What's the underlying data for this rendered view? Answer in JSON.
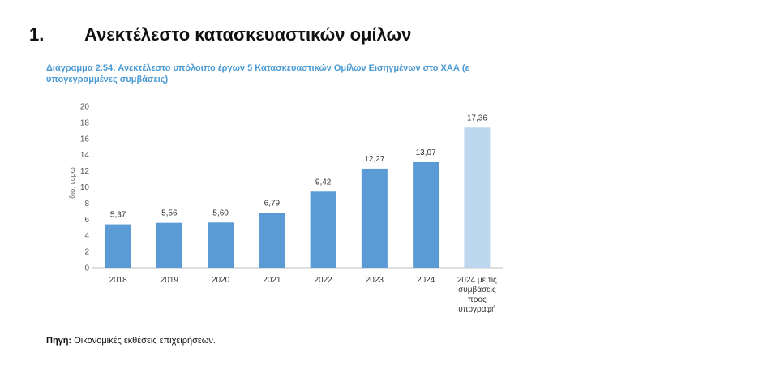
{
  "heading": {
    "number": "1.",
    "title": "Ανεκτέλεστο κατασκευαστικών ομίλων"
  },
  "caption": "Διάγραμμα 2.54: Ανεκτέλεστο υπόλοιπο έργων 5 Κατασκευαστικών Ομίλων Εισηγμένων στο ΧΑΑ (ε υπογεγραμμένες συμβάσεις)",
  "chart_data": {
    "type": "bar",
    "categories": [
      "2018",
      "2019",
      "2020",
      "2021",
      "2022",
      "2023",
      "2024",
      "2024 με τις συμβάσεις προς υπογραφή"
    ],
    "values": [
      5.37,
      5.56,
      5.6,
      6.79,
      9.42,
      12.27,
      13.07,
      17.36
    ],
    "value_labels": [
      "5,37",
      "5,56",
      "5,60",
      "6,79",
      "9,42",
      "12,27",
      "13,07",
      "17,36"
    ],
    "yticks": [
      0,
      2,
      4,
      6,
      8,
      10,
      12,
      14,
      16,
      18,
      20
    ],
    "ylim": [
      0,
      20
    ],
    "ylabel": "δισ. ευρώ",
    "grid": false,
    "colors": {
      "bar": "#5b9bd5",
      "highlight_bar": "#bdd7ee"
    },
    "highlight_index": 7
  },
  "source": {
    "label": "Πηγή:",
    "text": " Οικονομικές εκθέσεις επιχειρήσεων."
  }
}
